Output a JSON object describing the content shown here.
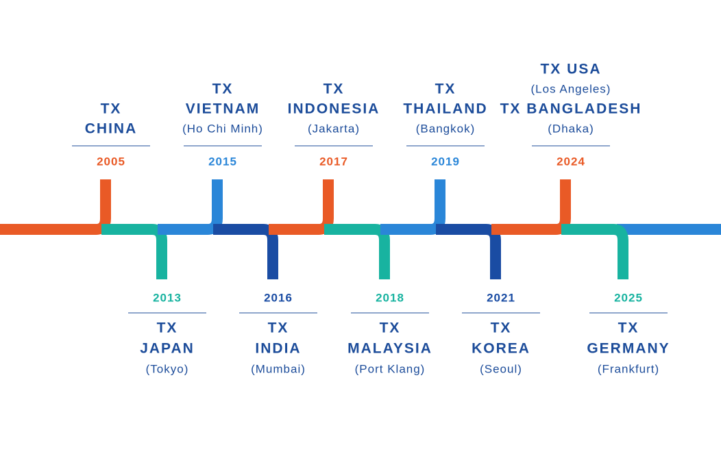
{
  "top": [
    {
      "year": "2005",
      "color": "#e95a26",
      "lines": [
        "TX",
        "CHINA"
      ]
    },
    {
      "year": "2015",
      "color": "#2a86d8",
      "lines": [
        "TX",
        "VIETNAM",
        "(Ho Chi Minh)"
      ]
    },
    {
      "year": "2017",
      "color": "#e95a26",
      "lines": [
        "TX",
        "INDONESIA",
        "(Jakarta)"
      ]
    },
    {
      "year": "2019",
      "color": "#2a86d8",
      "lines": [
        "TX",
        "THAILAND",
        "(Bangkok)"
      ]
    },
    {
      "year": "2024",
      "color": "#e95a26",
      "lines": [
        "TX USA",
        "(Los Angeles)",
        "TX BANGLADESH",
        "(Dhaka)"
      ]
    }
  ],
  "bottom": [
    {
      "year": "2013",
      "color": "#18b3a0",
      "lines": [
        "TX",
        "JAPAN",
        "(Tokyo)"
      ]
    },
    {
      "year": "2016",
      "color": "#1a4ca3",
      "lines": [
        "TX",
        "INDIA",
        "(Mumbai)"
      ]
    },
    {
      "year": "2018",
      "color": "#18b3a0",
      "lines": [
        "TX",
        "MALAYSIA",
        "(Port Klang)"
      ]
    },
    {
      "year": "2021",
      "color": "#1a4ca3",
      "lines": [
        "TX",
        "KOREA",
        "(Seoul)"
      ]
    },
    {
      "year": "2025",
      "color": "#18b3a0",
      "lines": [
        "TX",
        "GERMANY",
        "(Frankfurt)"
      ]
    }
  ]
}
